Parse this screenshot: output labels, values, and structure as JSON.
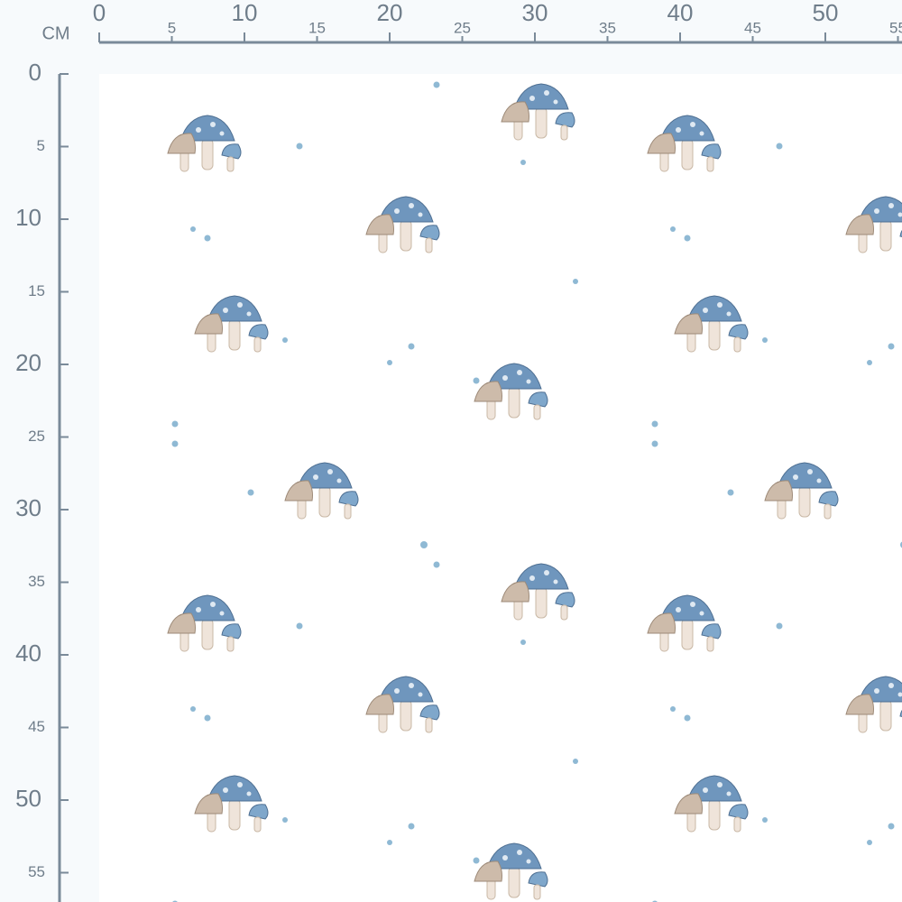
{
  "ruler": {
    "unit": "CM",
    "x_ticks": [
      0,
      5,
      10,
      15,
      20,
      25,
      30,
      35,
      40,
      45,
      50,
      55
    ],
    "y_ticks": [
      0,
      5,
      10,
      15,
      20,
      25,
      30,
      35,
      40,
      45,
      50,
      55
    ]
  }
}
